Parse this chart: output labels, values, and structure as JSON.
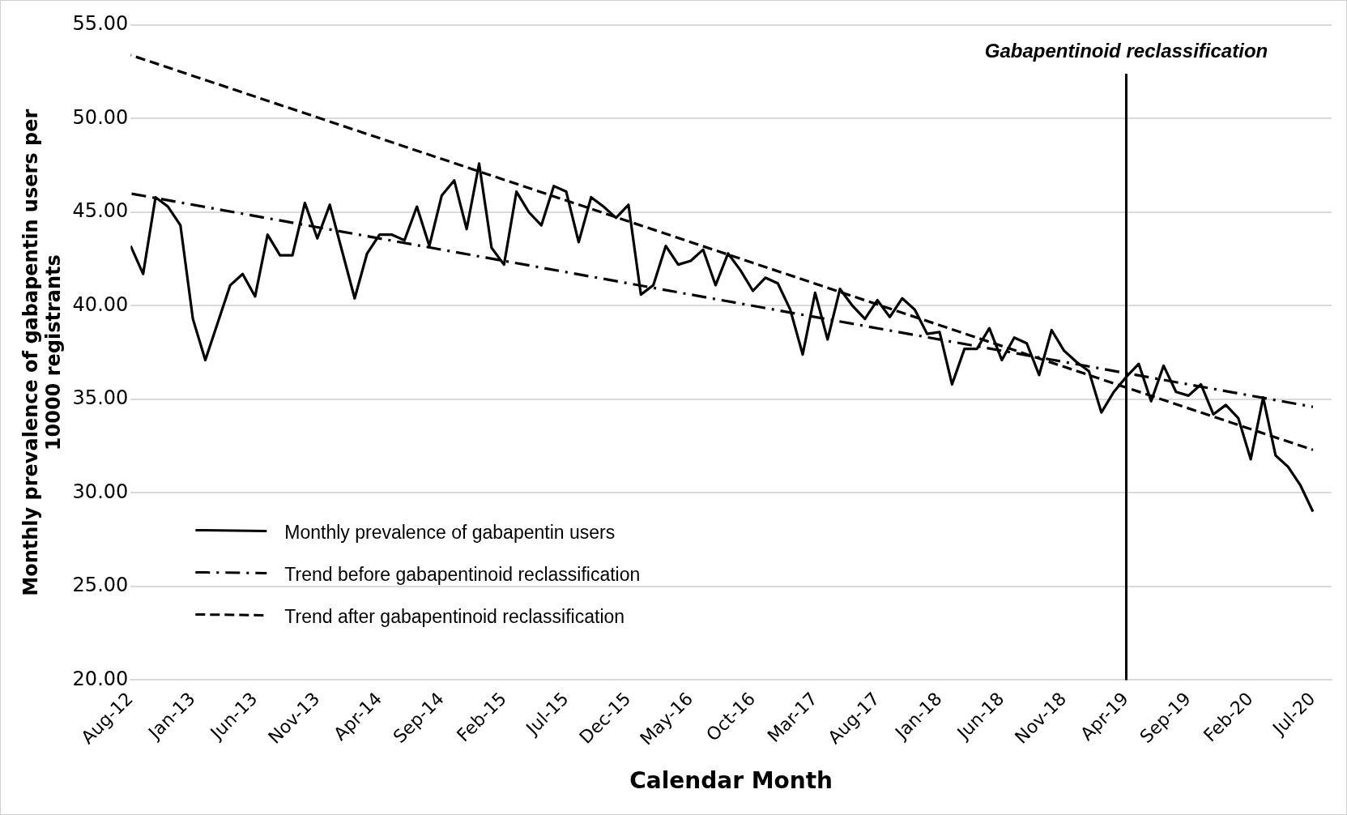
{
  "chart_data": {
    "type": "line",
    "xlabel": "Calendar Month",
    "ylabel": "Monthly prevalence of gabapentin users per 10000 registrants",
    "categories": [
      "Aug-12",
      null,
      null,
      null,
      null,
      "Jan-13",
      null,
      null,
      null,
      null,
      "Jun-13",
      null,
      null,
      null,
      null,
      "Nov-13",
      null,
      null,
      null,
      null,
      "Apr-14",
      null,
      null,
      null,
      null,
      "Sep-14",
      null,
      null,
      null,
      null,
      "Feb-15",
      null,
      null,
      null,
      null,
      "Jul-15",
      null,
      null,
      null,
      null,
      "Dec-15",
      null,
      null,
      null,
      null,
      "May-16",
      null,
      null,
      null,
      null,
      "Oct-16",
      null,
      null,
      null,
      null,
      "Mar-17",
      null,
      null,
      null,
      null,
      "Aug-17",
      null,
      null,
      null,
      null,
      "Jan-18",
      null,
      null,
      null,
      null,
      "Jun-18",
      null,
      null,
      null,
      null,
      "Nov-18",
      null,
      null,
      null,
      null,
      "Apr-19",
      null,
      null,
      null,
      null,
      "Sep-19",
      null,
      null,
      null,
      null,
      "Feb-20",
      null,
      null,
      null,
      null,
      "Jul-20"
    ],
    "series": [
      {
        "name": "Monthly prevalence of gabapentin users",
        "color": "#000000",
        "line_style": "solid",
        "values": [
          43.2,
          41.7,
          45.8,
          45.3,
          44.3,
          39.3,
          37.1,
          39.1,
          41.1,
          41.7,
          40.5,
          43.8,
          42.7,
          42.7,
          45.5,
          43.6,
          45.4,
          42.9,
          40.4,
          42.8,
          43.8,
          43.8,
          43.5,
          45.3,
          43.2,
          45.9,
          46.7,
          44.1,
          47.6,
          43.1,
          42.2,
          46.1,
          45.0,
          44.3,
          46.4,
          46.1,
          43.4,
          45.8,
          45.3,
          44.7,
          45.4,
          40.6,
          41.1,
          43.2,
          42.2,
          42.4,
          43.0,
          41.1,
          42.8,
          41.9,
          40.8,
          41.5,
          41.2,
          39.8,
          37.4,
          40.7,
          38.2,
          40.9,
          40.0,
          39.3,
          40.3,
          39.4,
          40.4,
          39.8,
          38.5,
          38.6,
          35.8,
          37.7,
          37.7,
          38.8,
          37.1,
          38.3,
          38.0,
          36.3,
          38.7,
          37.6,
          37.0,
          36.5,
          34.3,
          35.4,
          36.2,
          36.9,
          34.9,
          36.8,
          35.4,
          35.2,
          35.8,
          34.2,
          34.7,
          34.0,
          31.8,
          35.1,
          32.0,
          31.4,
          30.4,
          29.0
        ]
      },
      {
        "name": "Trend before gabapentinoid reclassification",
        "color": "#000000",
        "line_style": "dashdot",
        "x": [
          "Aug-12",
          "Jul-20"
        ],
        "values": [
          46.0,
          34.6
        ]
      },
      {
        "name": "Trend after gabapentinoid reclassification",
        "color": "#000000",
        "line_style": "dashed",
        "x": [
          "Aug-12",
          "Jul-20"
        ],
        "values": [
          53.4,
          32.3
        ]
      }
    ],
    "ylim": [
      20,
      55
    ],
    "yticks": [
      {
        "value": 20,
        "label": "20.00"
      },
      {
        "value": 25,
        "label": "25.00"
      },
      {
        "value": 30,
        "label": "30.00"
      },
      {
        "value": 35,
        "label": "35.00"
      },
      {
        "value": 40,
        "label": "40.00"
      },
      {
        "value": 45,
        "label": "45.00"
      },
      {
        "value": 50,
        "label": "50.00"
      },
      {
        "value": 55,
        "label": "55.00"
      }
    ],
    "ref_lines": [
      {
        "axis": "x",
        "value": "Apr-19",
        "label": "Gabapentinoid reclassification",
        "color": "#000000",
        "line_style": "solid"
      }
    ],
    "grid": "y",
    "legend": "bottom left",
    "marker": "none"
  }
}
